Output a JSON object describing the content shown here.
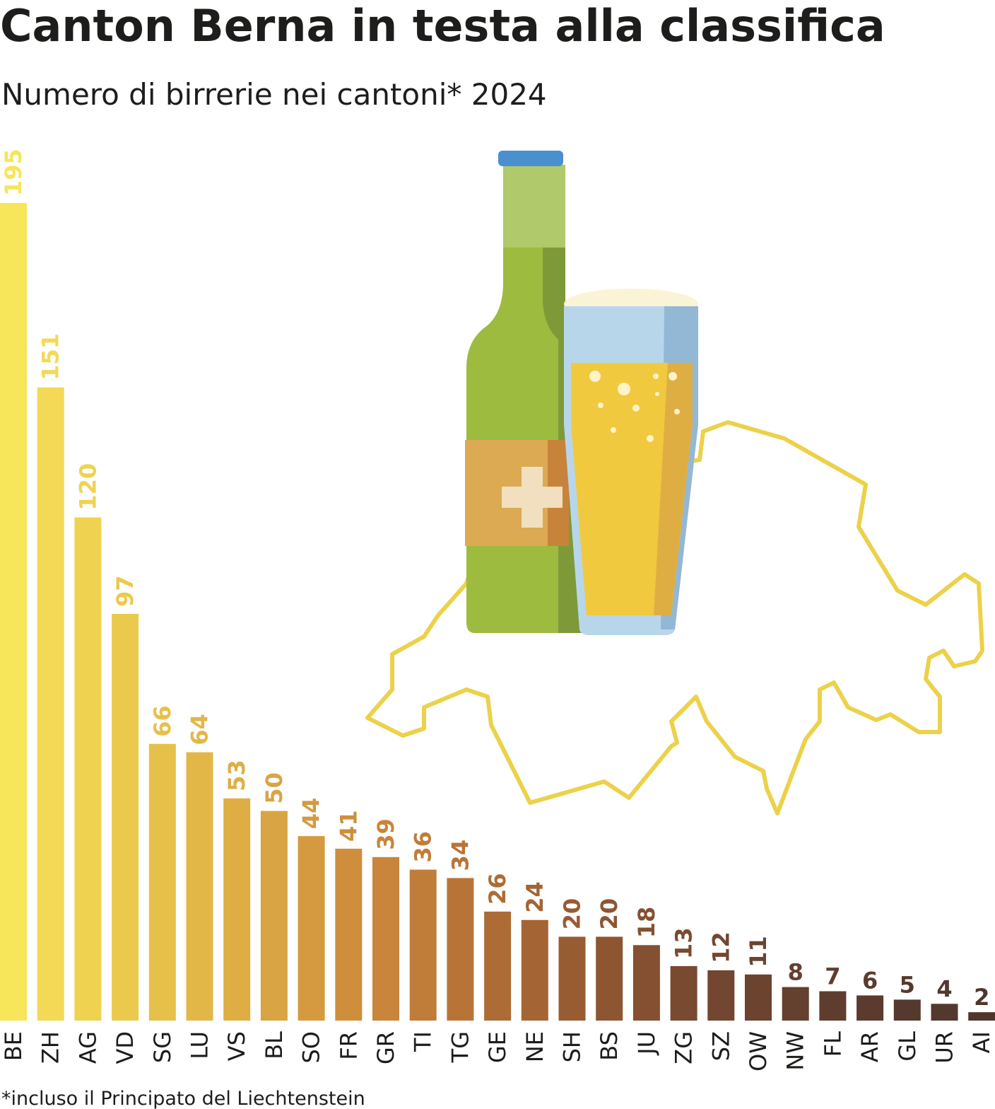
{
  "chart_data": {
    "type": "bar",
    "title": "Canton Berna in testa alla classifica",
    "subtitle": "Numero di birrerie nei cantoni* 2024",
    "categories": [
      "BE",
      "ZH",
      "AG",
      "VD",
      "SG",
      "LU",
      "VS",
      "BL",
      "SO",
      "FR",
      "GR",
      "TI",
      "TG",
      "GE",
      "NE",
      "SH",
      "BS",
      "JU",
      "ZG",
      "SZ",
      "OW",
      "NW",
      "FL",
      "AR",
      "GL",
      "UR",
      "AI"
    ],
    "values": [
      195,
      151,
      120,
      97,
      66,
      64,
      53,
      50,
      44,
      41,
      39,
      36,
      34,
      26,
      24,
      20,
      20,
      18,
      13,
      12,
      11,
      8,
      7,
      6,
      5,
      4,
      2
    ],
    "colors": [
      "#f7e55a",
      "#f3d955",
      "#efd250",
      "#ebc94c",
      "#e6c04a",
      "#e2b748",
      "#deae45",
      "#d9a443",
      "#d59a40",
      "#cf8e3c",
      "#c9853b",
      "#c07c39",
      "#b87437",
      "#ad6c35",
      "#a46434",
      "#985c33",
      "#8e5532",
      "#845031",
      "#7a4a30",
      "#724630",
      "#6b432f",
      "#64402f",
      "#5e3d2f",
      "#5a3b2e",
      "#56392e",
      "#53382e",
      "#4f362d"
    ],
    "footnote": "*incluso il Principato del Liechtenstein"
  }
}
